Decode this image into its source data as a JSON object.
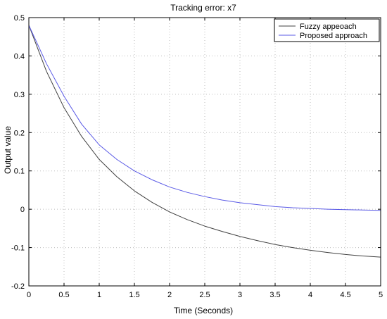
{
  "chart_data": {
    "type": "line",
    "title": "Tracking error: x7",
    "xlabel": "Time (Seconds)",
    "ylabel": "Output value",
    "xlim": [
      0,
      5
    ],
    "ylim": [
      -0.2,
      0.5
    ],
    "xticks": [
      0,
      0.5,
      1,
      1.5,
      2,
      2.5,
      3,
      3.5,
      4,
      4.5,
      5
    ],
    "xtick_labels": [
      "0",
      "0.5",
      "1",
      "1.5",
      "2",
      "2.5",
      "3",
      "3.5",
      "4",
      "4.5",
      "5"
    ],
    "yticks": [
      -0.2,
      -0.1,
      0,
      0.1,
      0.2,
      0.3,
      0.4,
      0.5
    ],
    "ytick_labels": [
      "-0.2",
      "-0.1",
      "0",
      "0.1",
      "0.2",
      "0.3",
      "0.4",
      "0.5"
    ],
    "grid": true,
    "legend_position": "top-right",
    "x": [
      0,
      0.25,
      0.5,
      0.75,
      1,
      1.25,
      1.5,
      1.75,
      2,
      2.25,
      2.5,
      2.75,
      3,
      3.25,
      3.5,
      3.75,
      4,
      4.25,
      4.5,
      4.75,
      5
    ],
    "series": [
      {
        "name": "Fuzzy appeoach",
        "color": "#404040",
        "values": [
          0.48,
          0.36,
          0.265,
          0.19,
          0.13,
          0.085,
          0.048,
          0.018,
          -0.007,
          -0.027,
          -0.044,
          -0.058,
          -0.071,
          -0.082,
          -0.092,
          -0.1,
          -0.107,
          -0.113,
          -0.118,
          -0.122,
          -0.125
        ]
      },
      {
        "name": "Proposed approach",
        "color": "#5a5ae6",
        "values": [
          0.48,
          0.38,
          0.295,
          0.222,
          0.168,
          0.13,
          0.1,
          0.077,
          0.058,
          0.044,
          0.033,
          0.024,
          0.017,
          0.012,
          0.007,
          0.004,
          0.002,
          0.0,
          -0.001,
          -0.002,
          -0.003
        ]
      }
    ]
  }
}
